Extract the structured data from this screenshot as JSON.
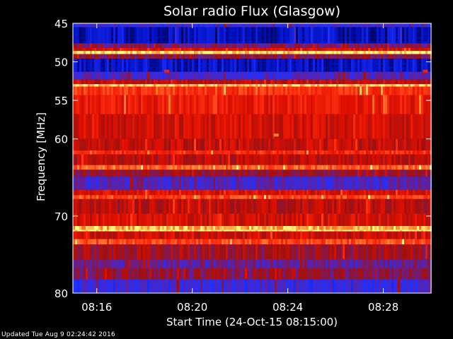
{
  "chart_data": {
    "type": "heatmap",
    "title": "Solar radio Flux (Glasgow)",
    "xlabel": "Start Time (24-Oct-15 08:15:00)",
    "ylabel": "Frequency [MHz]",
    "xlim": [
      "08:15:00",
      "08:30:00"
    ],
    "x_ticks": [
      "08:16",
      "08:20",
      "08:24",
      "08:28"
    ],
    "ylim": [
      45,
      80
    ],
    "y_ticks": [
      45,
      50,
      55,
      60,
      70,
      80
    ],
    "colormap": [
      "#000040",
      "#0010c0",
      "#2030ff",
      "#6020a0",
      "#a01010",
      "#e01000",
      "#ff3010",
      "#ff8030",
      "#ffff80"
    ],
    "bands": [
      {
        "f0": 45.0,
        "f1": 45.5,
        "level": 0.3
      },
      {
        "f0": 45.5,
        "f1": 47.6,
        "level": 0.12
      },
      {
        "f0": 47.6,
        "f1": 48.2,
        "level": 0.42
      },
      {
        "f0": 48.2,
        "f1": 48.6,
        "level": 0.62
      },
      {
        "f0": 48.6,
        "f1": 49.0,
        "level": 0.97
      },
      {
        "f0": 49.0,
        "f1": 49.6,
        "level": 0.45
      },
      {
        "f0": 49.6,
        "f1": 51.3,
        "level": 0.14
      },
      {
        "f0": 51.3,
        "f1": 52.3,
        "level": 0.32
      },
      {
        "f0": 52.3,
        "f1": 52.9,
        "level": 0.55
      },
      {
        "f0": 52.9,
        "f1": 53.2,
        "level": 0.95
      },
      {
        "f0": 53.2,
        "f1": 54.3,
        "level": 0.74
      },
      {
        "f0": 54.3,
        "f1": 56.8,
        "level": 0.66
      },
      {
        "f0": 56.8,
        "f1": 60.0,
        "level": 0.6
      },
      {
        "f0": 60.0,
        "f1": 61.5,
        "level": 0.57
      },
      {
        "f0": 61.5,
        "f1": 62.0,
        "level": 0.72
      },
      {
        "f0": 62.0,
        "f1": 63.4,
        "level": 0.55
      },
      {
        "f0": 63.4,
        "f1": 64.0,
        "level": 0.82
      },
      {
        "f0": 64.0,
        "f1": 64.9,
        "level": 0.48
      },
      {
        "f0": 64.9,
        "f1": 66.6,
        "level": 0.34
      },
      {
        "f0": 66.6,
        "f1": 67.3,
        "level": 0.62
      },
      {
        "f0": 67.3,
        "f1": 67.8,
        "level": 0.78
      },
      {
        "f0": 67.8,
        "f1": 69.7,
        "level": 0.55
      },
      {
        "f0": 69.7,
        "f1": 71.3,
        "level": 0.6
      },
      {
        "f0": 71.3,
        "f1": 71.8,
        "level": 0.92
      },
      {
        "f0": 71.8,
        "f1": 72.0,
        "level": 0.99
      },
      {
        "f0": 72.0,
        "f1": 73.0,
        "level": 0.58
      },
      {
        "f0": 73.0,
        "f1": 73.7,
        "level": 0.78
      },
      {
        "f0": 73.7,
        "f1": 75.6,
        "level": 0.5
      },
      {
        "f0": 75.6,
        "f1": 76.8,
        "level": 0.38
      },
      {
        "f0": 76.8,
        "f1": 78.2,
        "level": 0.46
      },
      {
        "f0": 78.2,
        "f1": 80.0,
        "level": 0.3
      }
    ],
    "hotspots": [
      {
        "time": "08:18:55",
        "freq": 51.2,
        "level": 0.7
      },
      {
        "time": "08:23:30",
        "freq": 59.5,
        "level": 0.88
      },
      {
        "time": "08:29:45",
        "freq": 51.2,
        "level": 0.7
      }
    ]
  },
  "footer": {
    "updated_text": "Updated Tue Aug  9 02:24:42 2016"
  }
}
